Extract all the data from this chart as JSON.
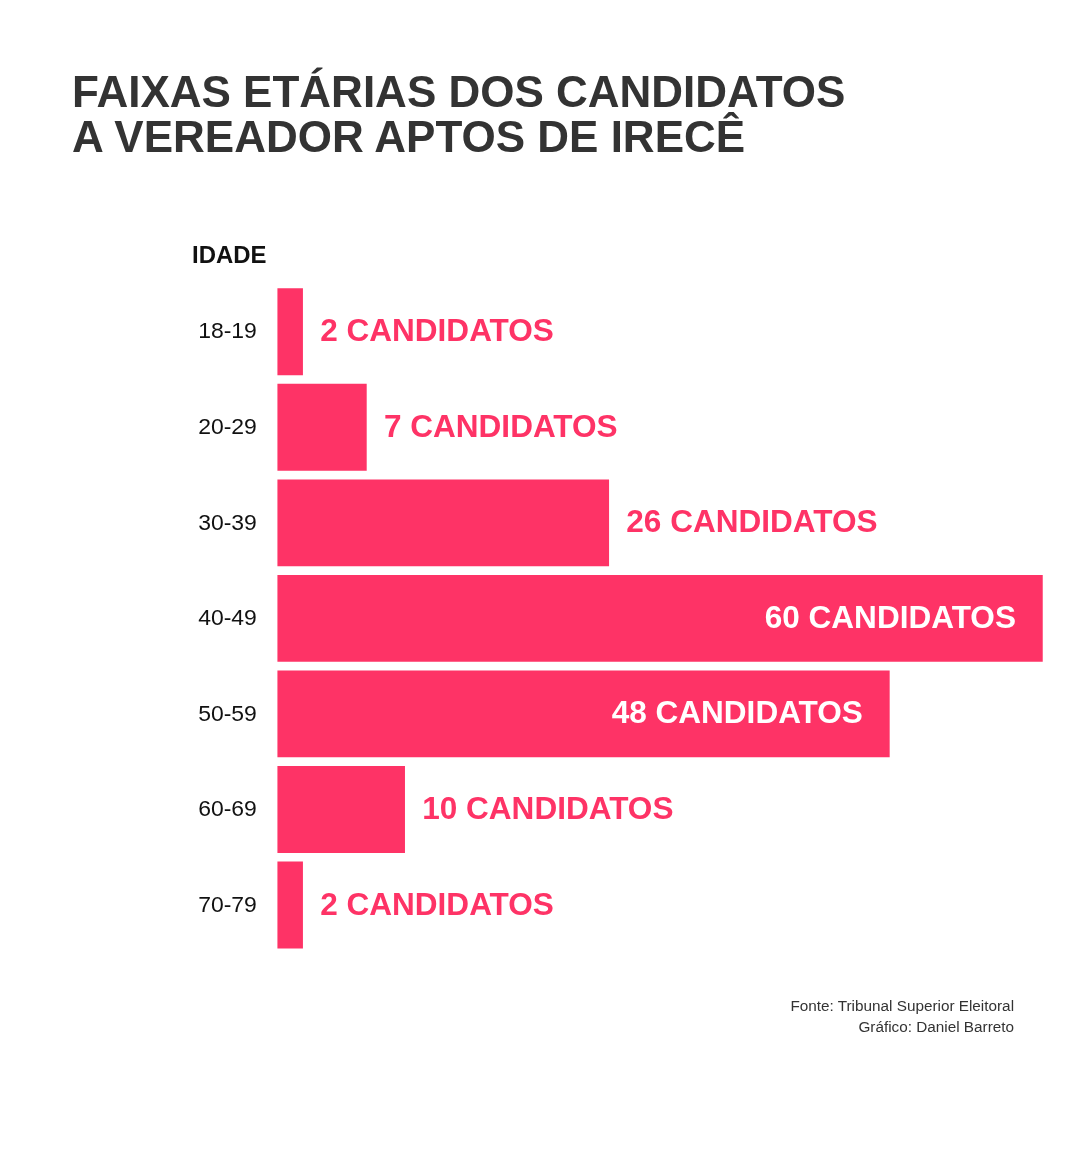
{
  "chart_data": {
    "type": "bar",
    "orientation": "horizontal",
    "title": "FAIXAS ETÁRIAS DOS CANDIDATOS A VEREADOR APTOS DE IRECÊ",
    "ylabel": "IDADE",
    "categories": [
      "18-19",
      "20-29",
      "30-39",
      "40-49",
      "50-59",
      "60-69",
      "70-79"
    ],
    "values": [
      2,
      7,
      26,
      60,
      48,
      10,
      2
    ],
    "color": "#fe3366",
    "value_labels": [
      "2 CANDIDATOS",
      "7 CANDIDATOS",
      "26 CANDIDATOS",
      "60 CANDIDATOS",
      "48 CANDIDATOS",
      "10 CANDIDATOS",
      "2 CANDIDATOS"
    ],
    "annotations": [
      "Fonte: Tribunal Superior Eleitoral",
      "Gráfico: Daniel Barreto"
    ]
  }
}
